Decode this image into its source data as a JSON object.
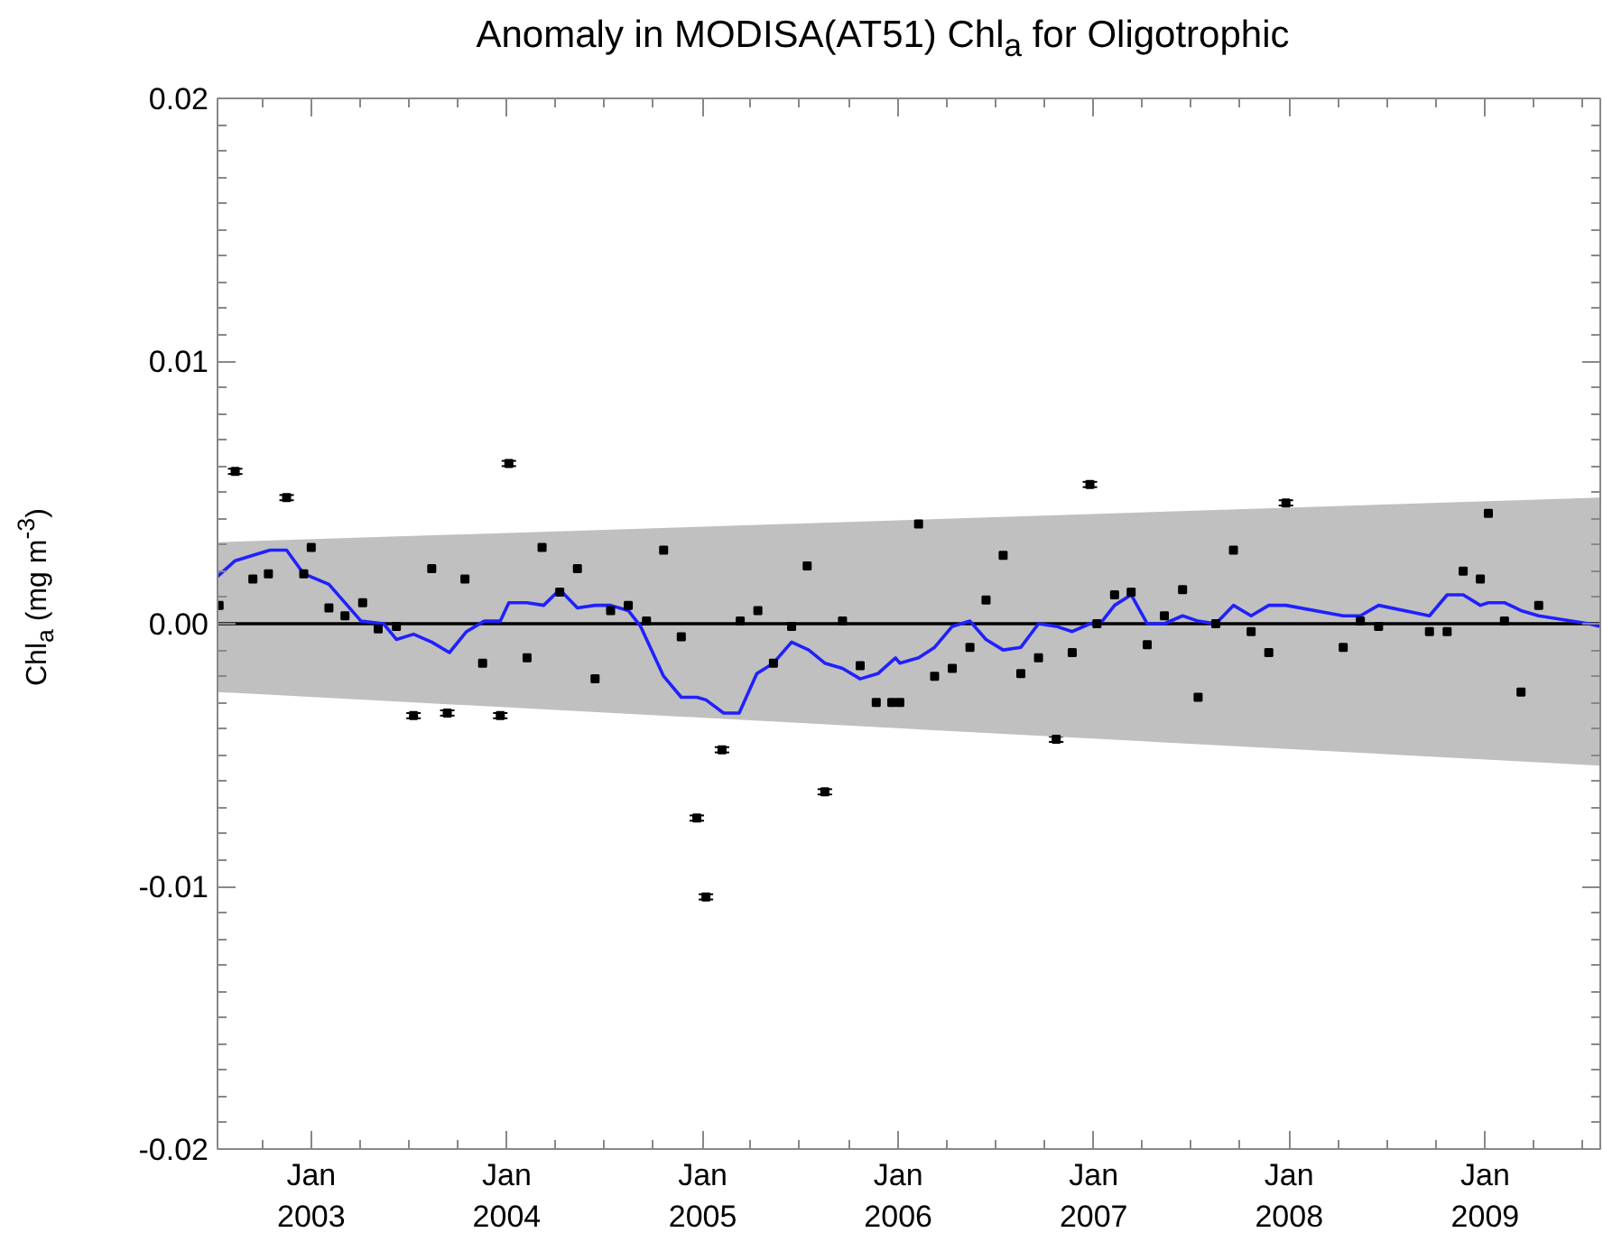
{
  "chart_data": {
    "type": "scatter",
    "title": "Anomaly in MODISA(AT51) Chl$_{a}$ for Oligotrophic",
    "ylabel": "Chl$_{a}$ (mg m$^{-3}$)",
    "xlim": [
      "2002-07-10",
      "2009-08-04"
    ],
    "ylim": [
      -0.02,
      0.02
    ],
    "xticks": [
      {
        "value": "2003-01-01",
        "label": "Jan\n2003"
      },
      {
        "value": "2004-01-01",
        "label": "Jan\n2004"
      },
      {
        "value": "2005-01-01",
        "label": "Jan\n2005"
      },
      {
        "value": "2006-01-01",
        "label": "Jan\n2006"
      },
      {
        "value": "2007-01-01",
        "label": "Jan\n2007"
      },
      {
        "value": "2008-01-01",
        "label": "Jan\n2008"
      },
      {
        "value": "2009-01-01",
        "label": "Jan\n2009"
      }
    ],
    "yticks": [
      {
        "value": -0.02,
        "label": "-0.02"
      },
      {
        "value": -0.01,
        "label": "-0.01"
      },
      {
        "value": 0,
        "label": "0.00"
      },
      {
        "value": 0.01,
        "label": "0.01"
      },
      {
        "value": 0.02,
        "label": "0.02"
      }
    ],
    "grid": false,
    "series": [
      {
        "type": "line",
        "color": "#000000",
        "x": [
          "2002-07-10",
          "2009-08-04"
        ],
        "values": [
          0,
          0
        ],
        "lower": [
          -0.0026,
          -0.0054
        ],
        "upper": [
          0.0031,
          0.0048
        ]
      },
      {
        "type": "line",
        "color": "#2020ff",
        "x": [
          "2002-07-10",
          "2002-08-12",
          "2002-09-14",
          "2002-10-16",
          "2002-11-16",
          "2002-12-18",
          "2003-02-03",
          "2003-04-04",
          "2003-05-16",
          "2003-06-09",
          "2003-07-11",
          "2003-08-14",
          "2003-09-16",
          "2003-10-18",
          "2003-11-20",
          "2003-12-20",
          "2004-01-05",
          "2004-02-08",
          "2004-03-10",
          "2004-04-09",
          "2004-05-12",
          "2004-06-14",
          "2004-07-13",
          "2004-08-15",
          "2004-09-07",
          "2004-10-20",
          "2004-11-22",
          "2004-12-21",
          "2005-01-07",
          "2005-02-09",
          "2005-03-10",
          "2005-04-12",
          "2005-05-13",
          "2005-06-16",
          "2005-07-18",
          "2005-08-17",
          "2005-09-19",
          "2005-10-22",
          "2005-11-24",
          "2005-12-27",
          "2006-01-04",
          "2006-02-08",
          "2006-03-10",
          "2006-04-12",
          "2006-05-15",
          "2006-06-14",
          "2006-07-16",
          "2006-08-18",
          "2006-09-20",
          "2006-10-23",
          "2006-11-22",
          "2006-12-25",
          "2007-01-17",
          "2007-02-09",
          "2007-03-12",
          "2007-04-11",
          "2007-05-13",
          "2007-06-16",
          "2007-07-15",
          "2007-08-17",
          "2007-09-19",
          "2007-10-22",
          "2007-11-24",
          "2007-12-26",
          "2008-04-11",
          "2008-05-13",
          "2008-06-16",
          "2008-09-19",
          "2008-10-22",
          "2008-11-21",
          "2008-12-23",
          "2009-01-07",
          "2009-02-06",
          "2009-03-09",
          "2009-04-11",
          "2009-07-13",
          "2009-08-04"
        ],
        "values": [
          0.0018,
          0.0024,
          0.0026,
          0.0028,
          0.0028,
          0.0019,
          0.0015,
          0.0001,
          0.0,
          -0.0006,
          -0.0004,
          -0.0007,
          -0.0011,
          -0.0003,
          0.0001,
          0.0001,
          0.0008,
          0.0008,
          0.0007,
          0.0013,
          0.0006,
          0.0007,
          0.0007,
          0.0005,
          -0.0001,
          -0.002,
          -0.0028,
          -0.0028,
          -0.0029,
          -0.0034,
          -0.0034,
          -0.0019,
          -0.0015,
          -0.0007,
          -0.001,
          -0.0015,
          -0.0017,
          -0.0021,
          -0.0019,
          -0.0013,
          -0.0015,
          -0.0013,
          -0.0009,
          -0.0001,
          0.0001,
          -0.0006,
          -0.001,
          -0.0009,
          0.0,
          -0.0001,
          -0.0003,
          0.0,
          0.0001,
          0.0007,
          0.0011,
          0.0,
          0.0,
          0.0003,
          0.0001,
          0.0,
          0.0007,
          0.0003,
          0.0007,
          0.0007,
          0.0003,
          0.0003,
          0.0007,
          0.0003,
          0.0011,
          0.0011,
          0.0007,
          0.0008,
          0.0008,
          0.0005,
          0.0003,
          0.0,
          -0.0001
        ]
      },
      {
        "marker": "square",
        "color": "#000000",
        "x": [
          "2002-07-13",
          "2002-08-12",
          "2002-09-14",
          "2002-10-13",
          "2002-11-16",
          "2002-12-18",
          "2003-01-01",
          "2003-02-03",
          "2003-03-05",
          "2003-04-07",
          "2003-05-06",
          "2003-06-09",
          "2003-07-11",
          "2003-08-14",
          "2003-09-12",
          "2003-10-15",
          "2003-11-17",
          "2003-12-20",
          "2004-01-05",
          "2004-02-08",
          "2004-03-07",
          "2004-04-09",
          "2004-05-12",
          "2004-06-14",
          "2004-07-13",
          "2004-08-15",
          "2004-09-18",
          "2004-10-20",
          "2004-11-22",
          "2004-12-21",
          "2005-01-07",
          "2005-02-06",
          "2005-03-12",
          "2005-04-14",
          "2005-05-13",
          "2005-06-16",
          "2005-07-15",
          "2005-08-17",
          "2005-09-19",
          "2005-10-22",
          "2005-11-21",
          "2005-12-20",
          "2006-01-04",
          "2006-02-08",
          "2006-03-10",
          "2006-04-12",
          "2006-05-15",
          "2006-06-14",
          "2006-07-16",
          "2006-08-18",
          "2006-09-20",
          "2006-10-23",
          "2006-11-22",
          "2006-12-25",
          "2007-01-07",
          "2007-02-09",
          "2007-03-12",
          "2007-04-11",
          "2007-05-13",
          "2007-06-16",
          "2007-07-15",
          "2007-08-17",
          "2007-09-19",
          "2007-10-22",
          "2007-11-24",
          "2007-12-26",
          "2008-04-11",
          "2008-05-13",
          "2008-06-16",
          "2008-09-19",
          "2008-10-22",
          "2008-11-21",
          "2008-12-23",
          "2009-01-07",
          "2009-02-06",
          "2009-03-09",
          "2009-04-11"
        ],
        "values": [
          0.0007,
          0.0058,
          0.0017,
          0.0019,
          0.0048,
          0.0019,
          0.0029,
          0.0006,
          0.0003,
          0.0008,
          -0.0002,
          -0.0001,
          -0.0035,
          0.0021,
          -0.0034,
          0.0017,
          -0.0015,
          -0.0035,
          0.0061,
          -0.0013,
          0.0029,
          0.0012,
          0.0021,
          -0.0021,
          0.0005,
          0.0007,
          0.0001,
          0.0028,
          -0.0005,
          -0.0074,
          -0.0104,
          -0.0048,
          0.0001,
          0.0005,
          -0.0015,
          -0.0001,
          0.0022,
          -0.0064,
          0.0001,
          -0.0016,
          -0.003,
          -0.003,
          -0.003,
          0.0038,
          -0.002,
          -0.0017,
          -0.0009,
          0.0009,
          0.0026,
          -0.0019,
          -0.0013,
          -0.0044,
          -0.0011,
          0.0053,
          0.0,
          0.0011,
          0.0012,
          -0.0008,
          0.0003,
          0.0013,
          -0.0028,
          0.0,
          0.0028,
          -0.0003,
          -0.0011,
          0.0046,
          -0.0009,
          0.0001,
          -0.0001,
          -0.0003,
          -0.0003,
          0.002,
          0.0017,
          0.0042,
          0.0001,
          -0.0026,
          0.0007
        ],
        "errors": [
          0.0001,
          0.0001,
          0.0001,
          0.0001,
          0.0001,
          0.0001,
          0.0001,
          0.0001,
          0.0001,
          0.0001,
          0.0001,
          0.0001,
          0.0001,
          0.0001,
          0.0001,
          0.0001,
          0.0001,
          0.0001,
          0.0001,
          0.0001,
          0.0001,
          0.0001,
          0.0001,
          0.0001,
          0.0001,
          0.0001,
          0.0001,
          0.0001,
          0.0001,
          0.0001,
          0.0001,
          0.0001,
          0.0001,
          0.0001,
          0.0001,
          0.0001,
          0.0001,
          0.0001,
          0.0001,
          0.0001,
          0.0001,
          0.0001,
          0.0001,
          0.0001,
          0.0001,
          0.0001,
          0.0001,
          0.0001,
          0.0001,
          0.0001,
          0.0001,
          0.0001,
          0.0001,
          0.0001,
          0.0001,
          0.0001,
          0.0001,
          0.0001,
          0.0001,
          0.0001,
          0.0001,
          0.0001,
          0.0001,
          0.0001,
          0.0001,
          0.0001,
          0.0001,
          0.0001,
          0.0001,
          0.0001,
          0.0001,
          0.0001,
          0.0001,
          0.0001,
          0.0001,
          0.0001,
          0.0001
        ]
      }
    ]
  }
}
